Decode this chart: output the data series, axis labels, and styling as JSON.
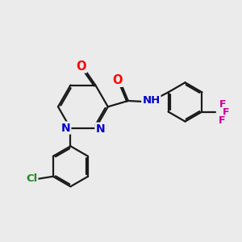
{
  "bg_color": "#ebebeb",
  "bond_color": "#1a1a1a",
  "bond_width": 1.6,
  "atom_colors": {
    "O": "#ff0000",
    "N": "#0000cc",
    "Cl": "#228B22",
    "F": "#cc0099",
    "C": "#1a1a1a"
  },
  "font_size": 9.5,
  "fig_size": [
    3.0,
    3.0
  ],
  "dpi": 100
}
